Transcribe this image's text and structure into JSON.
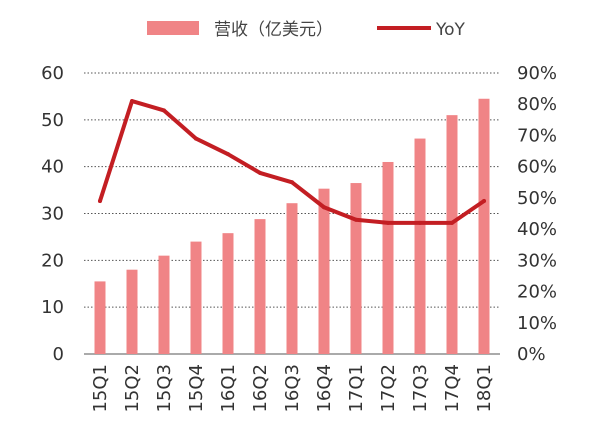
{
  "chart_data": {
    "type": "bar+line",
    "categories": [
      "15Q1",
      "15Q2",
      "15Q3",
      "15Q4",
      "16Q1",
      "16Q2",
      "16Q3",
      "16Q4",
      "17Q1",
      "17Q2",
      "17Q3",
      "17Q4",
      "18Q1"
    ],
    "series": [
      {
        "name": "营收（亿美元）",
        "type": "bar",
        "axis": "left",
        "values": [
          15.5,
          18,
          21,
          24,
          25.8,
          28.8,
          32.2,
          35.3,
          36.5,
          41,
          46,
          51,
          54.5
        ]
      },
      {
        "name": "YoY",
        "type": "line",
        "axis": "right",
        "values": [
          0.49,
          0.81,
          0.78,
          0.69,
          0.64,
          0.58,
          0.55,
          0.47,
          0.43,
          0.42,
          0.42,
          0.42,
          0.49
        ]
      }
    ],
    "y_left": {
      "min": 0,
      "max": 60,
      "ticks": [
        "0",
        "10",
        "20",
        "30",
        "40",
        "50",
        "60"
      ]
    },
    "y_right": {
      "min": 0,
      "max": 0.9,
      "ticks": [
        "0%",
        "10%",
        "20%",
        "30%",
        "40%",
        "50%",
        "60%",
        "70%",
        "80%",
        "90%"
      ]
    },
    "grid": "horizontal-dotted",
    "legend_position": "top",
    "colors": {
      "bar": "#F08486",
      "line": "#C31E23",
      "grid": "#555555"
    }
  }
}
